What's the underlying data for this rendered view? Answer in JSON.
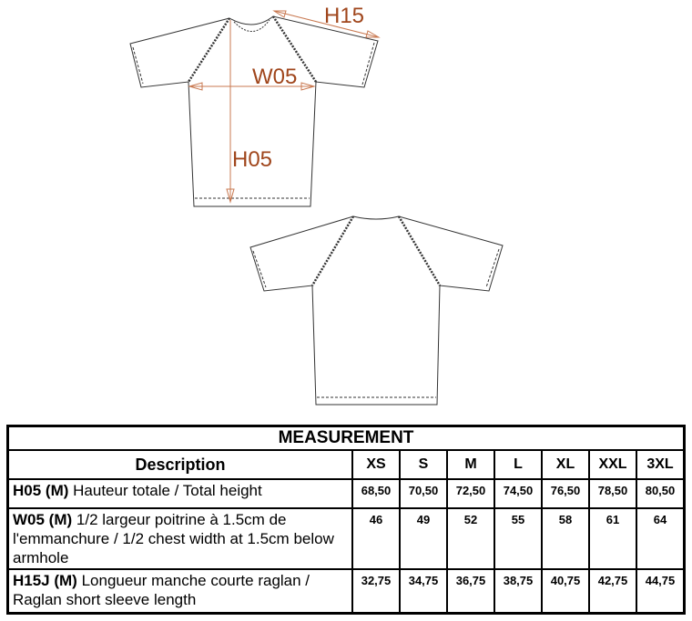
{
  "diagram": {
    "labels": {
      "h15": "H15",
      "w05": "W05",
      "h05": "H05"
    },
    "label_color": "#a0461c"
  },
  "table": {
    "title": "MEASUREMENT",
    "description_header": "Description",
    "sizes": [
      "XS",
      "S",
      "M",
      "L",
      "XL",
      "XXL",
      "3XL"
    ],
    "rows": [
      {
        "code": "H05 (M)",
        "text": " Hauteur totale / Total height",
        "values": [
          "68,50",
          "70,50",
          "72,50",
          "74,50",
          "76,50",
          "78,50",
          "80,50"
        ]
      },
      {
        "code": "W05 (M)",
        "text": " 1/2 largeur poitrine à 1.5cm de l'emmanchure / 1/2 chest width at 1.5cm below armhole",
        "values": [
          "46",
          "49",
          "52",
          "55",
          "58",
          "61",
          "64"
        ]
      },
      {
        "code": "H15J (M)",
        "text": " Longueur manche courte raglan / Raglan short sleeve length",
        "values": [
          "32,75",
          "34,75",
          "36,75",
          "38,75",
          "40,75",
          "42,75",
          "44,75"
        ]
      }
    ]
  }
}
